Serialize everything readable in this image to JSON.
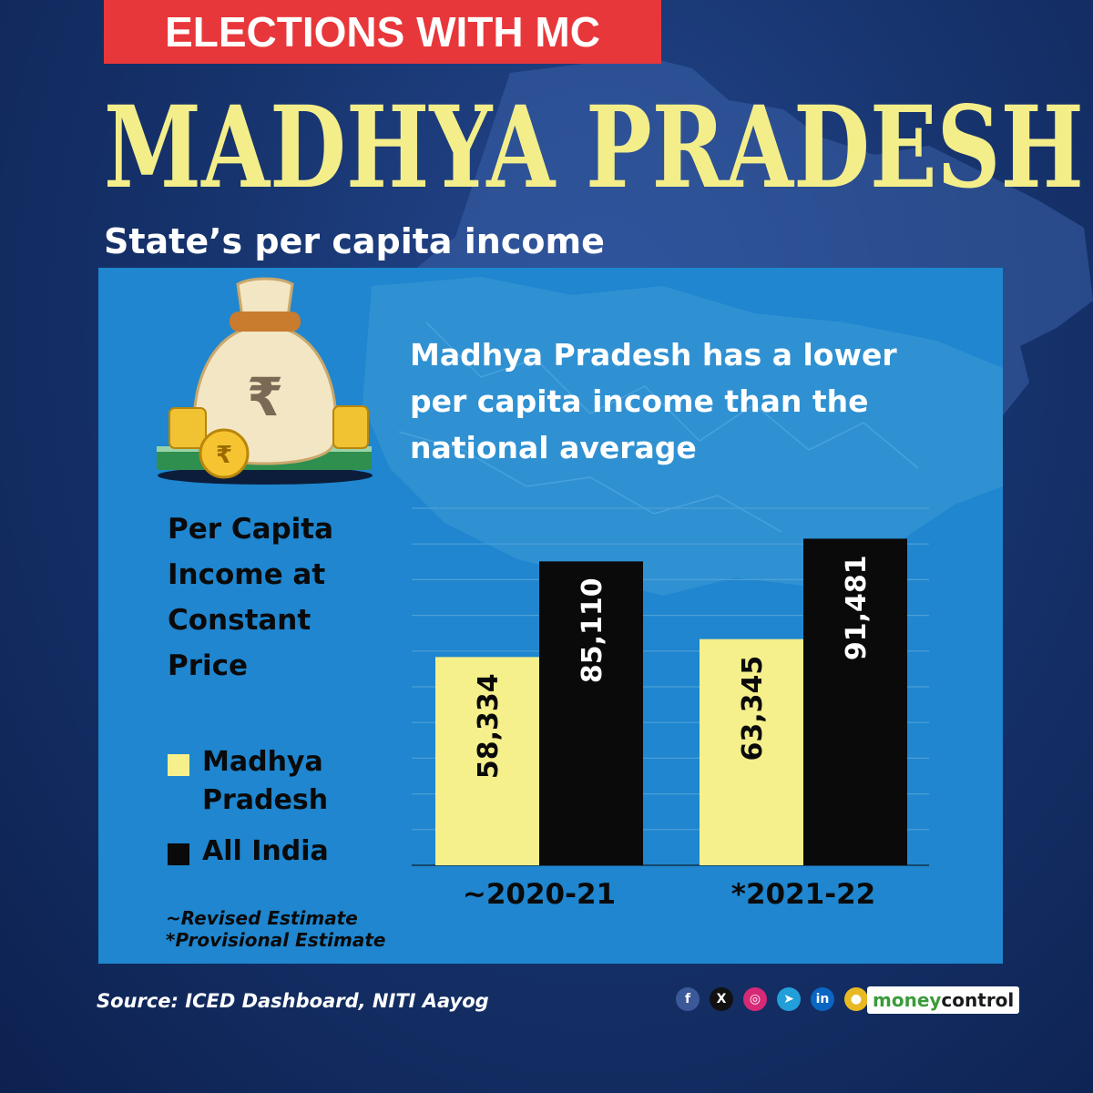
{
  "banner": {
    "label": "ELECTIONS WITH MC"
  },
  "title": "MADHYA PRADESH",
  "subtitle": "State’s per capita income",
  "headline": "Madhya Pradesh has a lower per capita income than the national average",
  "icons": {
    "bag": "money-bag-icon",
    "coin": "rupee-coin-icon"
  },
  "chart_data": {
    "type": "bar",
    "ylabel": "Per Capita Income at Constant Price",
    "categories": [
      "~2020-21",
      "*2021-22"
    ],
    "series": [
      {
        "name": "Madhya Pradesh",
        "values": [
          58334,
          63345
        ],
        "labels": [
          "58,334",
          "63,345"
        ],
        "color": "#f5ef8c"
      },
      {
        "name": "All India",
        "values": [
          85110,
          91481
        ],
        "labels": [
          "85,110",
          "91,481"
        ],
        "color": "#0a0a0a"
      }
    ],
    "ylim": [
      0,
      100000
    ],
    "grid": true,
    "legend_position": "left"
  },
  "notes": [
    "~Revised Estimate",
    "*Provisional Estimate"
  ],
  "footer": {
    "source": "Source: ICED Dashboard, NITI Aayog",
    "social": [
      {
        "icon": "facebook-icon",
        "glyph": "f",
        "color": "#3b5998"
      },
      {
        "icon": "x-icon",
        "glyph": "X",
        "color": "#111111"
      },
      {
        "icon": "instagram-icon",
        "glyph": "◎",
        "color": "#d62976"
      },
      {
        "icon": "telegram-icon",
        "glyph": "➤",
        "color": "#229ed9"
      },
      {
        "icon": "linkedin-icon",
        "glyph": "in",
        "color": "#0a66c2"
      },
      {
        "icon": "podcast-icon",
        "glyph": "●",
        "color": "#e8b923"
      }
    ],
    "brand_a": "money",
    "brand_b": "control"
  },
  "colors": {
    "banner": "#e8373a",
    "title": "#f4ee8a",
    "panel": "#1f86cf",
    "background": "#17346e"
  }
}
